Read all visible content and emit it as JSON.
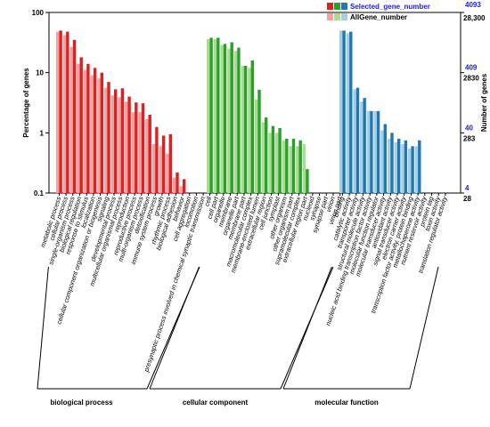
{
  "chart_data": {
    "type": "bar",
    "ylabel_left": "Percentage of genes",
    "ylabel_right": "Number of genes",
    "yscale": "log",
    "ylim": [
      0.1,
      100
    ],
    "left_ticks": [
      "100",
      "10",
      "1",
      "0.1"
    ],
    "right_ticks_selected": [
      "4093",
      "409",
      "40",
      "4"
    ],
    "right_ticks_all": [
      "28,300",
      "2830",
      "283",
      "28"
    ],
    "legend": {
      "position": "top-right",
      "selected_label": "Selected_gene_number",
      "all_label": "AllGene_number",
      "selected_colors": [
        "#e02020",
        "#2aa02a",
        "#1f78b4"
      ],
      "all_colors": [
        "#f4a0a0",
        "#a8dc90",
        "#a6cee3"
      ]
    },
    "groups": [
      {
        "name": "biological process",
        "selected_color": "#e02020",
        "all_color": "#f4a0a0",
        "categories": [
          "metabolic process",
          "cellular process",
          "single-organism process",
          "biological regulation",
          "response to stimulus",
          "localization",
          "cellular component organization or biogenesis",
          "signaling",
          "developmental process",
          "multicellular organismal process",
          "reproduction",
          "reproductive process",
          "multi-organism process",
          "detoxification",
          "immune system process",
          "growth",
          "rhythmic process",
          "biological adhesion",
          "behavior",
          "cell aggregation",
          "locomotion",
          "presynaptic process involved in chemical synaptic transmission"
        ],
        "selected": [
          50,
          48,
          35,
          18,
          14,
          12,
          10,
          7,
          5.3,
          5.5,
          4,
          3.2,
          3.1,
          2,
          1.25,
          0.9,
          0.95,
          0.22,
          0.17,
          0,
          0,
          0
        ],
        "all": [
          48,
          42,
          27,
          14,
          11,
          9,
          8,
          5.6,
          4.2,
          3.9,
          3.3,
          2.2,
          2.2,
          1.7,
          0.65,
          0.6,
          0.45,
          0.18,
          0.13,
          0,
          0,
          0
        ]
      },
      {
        "name": "cellular component",
        "selected_color": "#2aa02a",
        "all_color": "#a8dc90",
        "categories": [
          "cell",
          "cell part",
          "organelle",
          "membrane",
          "organelle part",
          "membrane part",
          "macromolecular complex",
          "membrane-enclosed lumen",
          "extracellular region",
          "cell junction",
          "symplast",
          "other organism",
          "other organism part",
          "supramolecular complex",
          "extracellular region part",
          "nucleoid",
          "synapse",
          "synapse part",
          "virion",
          "virion part"
        ],
        "selected": [
          38,
          38,
          30,
          32,
          26,
          13,
          16,
          5.2,
          1.8,
          1.3,
          1.2,
          0.8,
          0.8,
          0.75,
          0.25,
          0,
          0,
          0,
          0,
          0
        ],
        "all": [
          36,
          36,
          29,
          25,
          23,
          13,
          12,
          3.6,
          1.5,
          1.0,
          1.0,
          0.75,
          0.6,
          0.6,
          0.65,
          0,
          0,
          0,
          0,
          0
        ]
      },
      {
        "name": "molecular function",
        "selected_color": "#1f78b4",
        "all_color": "#a6cee3",
        "categories": [
          "binding",
          "catalytic activity",
          "transporter activity",
          "structural molecule activity",
          "nucleic acid binding transcription factor activity",
          "molecular function regulator",
          "molecular transducer activity",
          "antioxidant activity",
          "signal transducer activity",
          "electron carrier activity",
          "transcription factor activity, protein binding",
          "metallochaperone activity",
          "nutrient reservoir activity",
          "protein tag",
          "toxin activity",
          "translation regulator activity"
        ],
        "selected": [
          50,
          48,
          5.6,
          3.8,
          2.3,
          2.3,
          1.4,
          1.0,
          0.8,
          0.75,
          0.6,
          0.75,
          0,
          0,
          0,
          0
        ],
        "all": [
          50,
          45,
          5.3,
          3.3,
          2.3,
          2.3,
          1.1,
          0.8,
          0.7,
          0.65,
          0.55,
          0.6,
          0,
          0,
          0,
          0
        ]
      }
    ]
  }
}
